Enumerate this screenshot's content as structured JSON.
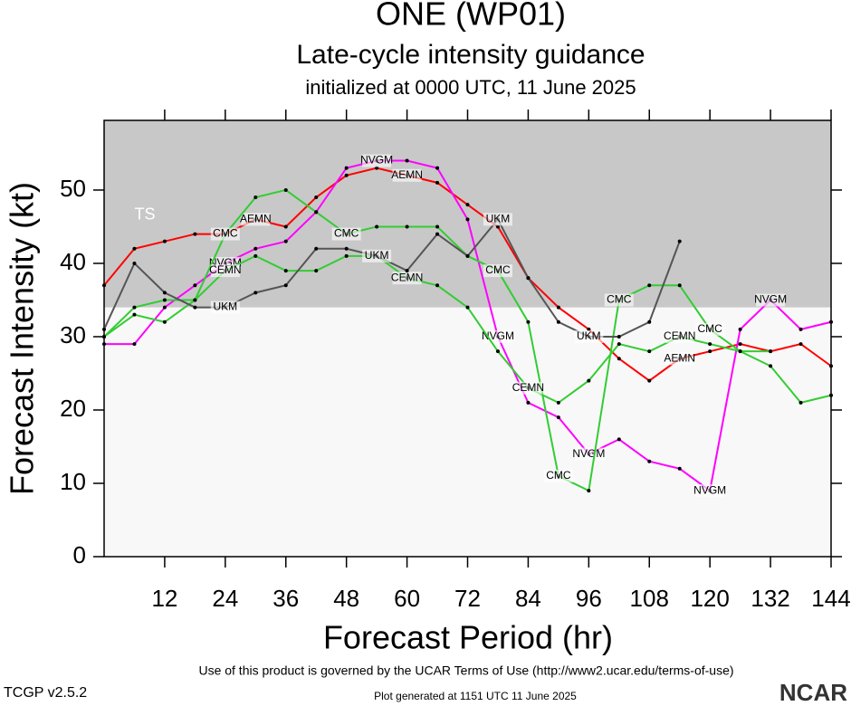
{
  "chart_data": {
    "type": "line",
    "title": "ONE (WP01)",
    "subtitle": "Late-cycle intensity guidance",
    "initialized": "initialized at 0000 UTC, 11 June 2025",
    "x_label": "Forecast Period (hr)",
    "y_label": "Forecast Intensity (kt)",
    "x": [
      0,
      6,
      12,
      18,
      24,
      30,
      36,
      42,
      48,
      54,
      60,
      66,
      72,
      78,
      84,
      90,
      96,
      102,
      108,
      114,
      120,
      126,
      132,
      138,
      144
    ],
    "xlim": [
      0,
      144
    ],
    "xticks": [
      12,
      24,
      36,
      48,
      60,
      72,
      84,
      96,
      108,
      120,
      132,
      144
    ],
    "ylim": [
      0,
      59.5
    ],
    "yticks": [
      0,
      10,
      20,
      30,
      40,
      50
    ],
    "bands": [
      {
        "label": "TS",
        "from": 34,
        "color": "#c8c8c8"
      }
    ],
    "series": [
      {
        "name": "AEMN",
        "color": "#ff0000",
        "values": [
          37,
          42,
          43,
          44,
          44,
          46,
          45,
          49,
          52,
          53,
          52,
          51,
          48,
          45,
          38,
          34,
          31,
          27,
          24,
          27,
          28,
          29,
          28,
          29,
          26
        ]
      },
      {
        "name": "NVGM",
        "color": "#ff00ff",
        "values": [
          29,
          29,
          34,
          37,
          40,
          42,
          43,
          47,
          53,
          54,
          54,
          53,
          46,
          30,
          21,
          19,
          14,
          16,
          13,
          12,
          9,
          31,
          35,
          31,
          32
        ]
      },
      {
        "name": "CMC",
        "color": "#33cc33",
        "values": [
          30,
          34,
          35,
          35,
          44,
          49,
          50,
          47,
          44,
          45,
          45,
          45,
          41,
          39,
          32,
          11,
          9,
          35,
          37,
          37,
          31,
          28,
          26,
          21,
          22
        ]
      },
      {
        "name": "CEMN",
        "color": "#33cc33",
        "values": [
          30,
          33,
          32,
          35,
          39,
          41,
          39,
          39,
          41,
          41,
          38,
          37,
          34,
          28,
          23,
          21,
          24,
          29,
          28,
          30,
          29,
          28,
          28,
          null,
          null
        ]
      },
      {
        "name": "UKM",
        "color": "#555555",
        "values": [
          31,
          40,
          36,
          34,
          34,
          36,
          37,
          42,
          42,
          41,
          39,
          44,
          41,
          46,
          38,
          32,
          30,
          30,
          32,
          43,
          null,
          null,
          null,
          null,
          null
        ]
      }
    ],
    "footer": "Use of this product is governed by the UCAR Terms of Use (http://www2.ucar.edu/terms-of-use)",
    "version": "TCGP v2.5.2",
    "generated": "Plot generated at 1151 UTC   11 June 2025",
    "logo": "NCAR"
  }
}
